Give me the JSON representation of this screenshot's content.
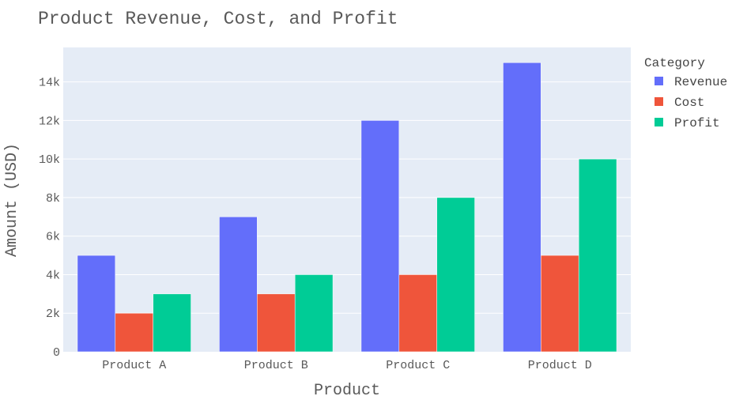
{
  "chart_data": {
    "type": "bar",
    "title": "Product Revenue, Cost, and Profit",
    "xlabel": "Product",
    "ylabel": "Amount (USD)",
    "categories": [
      "Product A",
      "Product B",
      "Product C",
      "Product D"
    ],
    "series": [
      {
        "name": "Revenue",
        "values": [
          5000,
          7000,
          12000,
          15000
        ],
        "color": "#636efa"
      },
      {
        "name": "Cost",
        "values": [
          2000,
          3000,
          4000,
          5000
        ],
        "color": "#ef553b"
      },
      {
        "name": "Profit",
        "values": [
          3000,
          4000,
          8000,
          10000
        ],
        "color": "#00cc96"
      }
    ],
    "ylim": [
      0,
      15789
    ],
    "yticks": [
      0,
      2000,
      4000,
      6000,
      8000,
      10000,
      12000,
      14000
    ],
    "ytick_labels": [
      "0",
      "2k",
      "4k",
      "6k",
      "8k",
      "10k",
      "12k",
      "14k"
    ],
    "legend": {
      "title": "Category",
      "position": "top-right"
    },
    "grid": true,
    "plot_background": "#e5ecf6"
  }
}
